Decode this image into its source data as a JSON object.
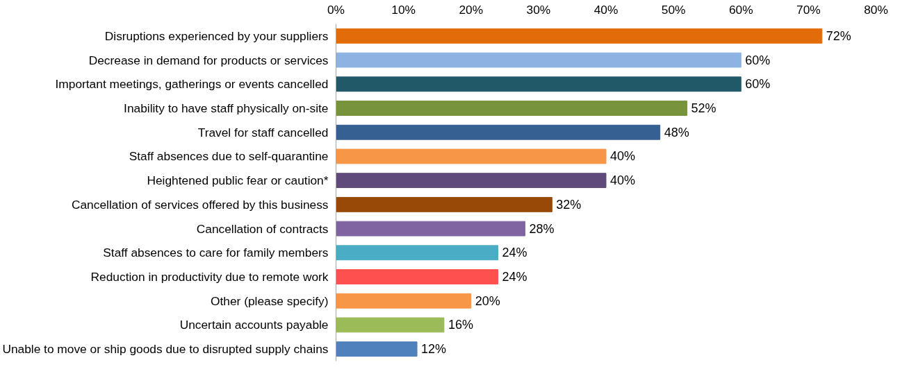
{
  "chart_data": {
    "type": "bar",
    "orientation": "horizontal",
    "categories": [
      "Disruptions experienced by your suppliers",
      "Decrease in demand for products or services",
      "Important meetings, gatherings or events cancelled",
      "Inability to have staff physically on-site",
      "Travel for staff cancelled",
      "Staff absences due to self-quarantine",
      "Heightened public fear or caution*",
      "Cancellation of services offered by this business",
      "Cancellation of contracts",
      "Staff absences to care for family members",
      "Reduction in productivity due to remote work",
      "Other (please specify)",
      "Uncertain accounts payable",
      "Unable to move or ship goods due to disrupted supply chains"
    ],
    "values": [
      72,
      60,
      60,
      52,
      48,
      40,
      40,
      32,
      28,
      24,
      24,
      20,
      16,
      12
    ],
    "colors": [
      "#e36c0a",
      "#8db3e2",
      "#215968",
      "#77933c",
      "#366092",
      "#f79646",
      "#604a7b",
      "#984807",
      "#8064a2",
      "#4bacc6",
      "#ff5050",
      "#f79646",
      "#9bbb59",
      "#4f81bd"
    ],
    "value_labels": [
      "72%",
      "60%",
      "60%",
      "52%",
      "48%",
      "40%",
      "40%",
      "32%",
      "28%",
      "24%",
      "24%",
      "20%",
      "16%",
      "12%"
    ],
    "xlim": [
      0,
      80
    ],
    "xticks": [
      {
        "value": 0,
        "label": "0%"
      },
      {
        "value": 10,
        "label": "10%"
      },
      {
        "value": 20,
        "label": "20%"
      },
      {
        "value": 30,
        "label": "30%"
      },
      {
        "value": 40,
        "label": "40%"
      },
      {
        "value": 50,
        "label": "50%"
      },
      {
        "value": 60,
        "label": "60%"
      },
      {
        "value": 70,
        "label": "70%"
      },
      {
        "value": 80,
        "label": "80%"
      }
    ],
    "grid": false
  }
}
